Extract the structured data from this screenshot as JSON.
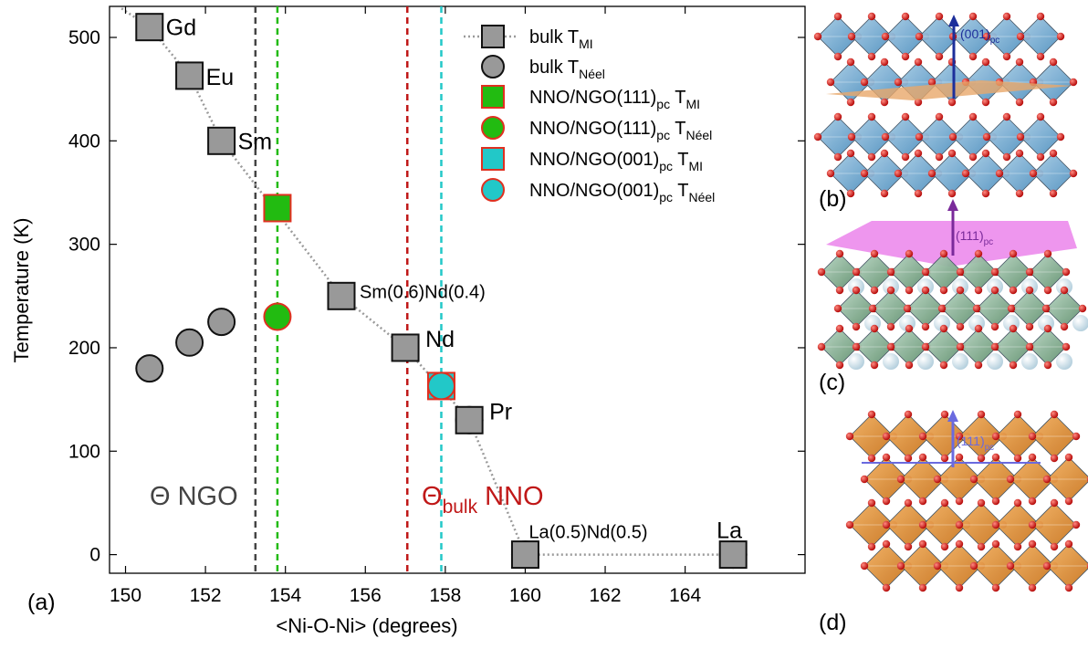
{
  "chart_data": {
    "type": "scatter",
    "panel_labels": {
      "a": "(a)",
      "b": "(b)",
      "c": "(c)",
      "d": "(d)"
    },
    "xlabel": "<Ni-O-Ni> (degrees)",
    "ylabel": "Temperature (K)",
    "xlim": [
      149.6,
      167.0
    ],
    "ylim": [
      -18,
      530
    ],
    "x_ticks": [
      150,
      152,
      154,
      156,
      158,
      160,
      162,
      164
    ],
    "x_tick_labels": [
      "150",
      "152",
      "154",
      "156",
      "158",
      "160",
      "162",
      "164"
    ],
    "y_ticks": [
      0,
      100,
      200,
      300,
      400,
      500
    ],
    "y_tick_labels": [
      "0",
      "100",
      "200",
      "300",
      "400",
      "500"
    ],
    "legend_position": "top-right",
    "colors": {
      "bulk_fill": "#999999",
      "green": "#22bb11",
      "cyan": "#22c8c8",
      "red_edge": "#e03020",
      "dashed_ngo": "#444444",
      "dashed_nno": "#c01818"
    },
    "series": [
      {
        "name": "bulk T",
        "name_sub": "MI",
        "marker": "square",
        "fill": "#999999",
        "edge": "#111111",
        "line": "dotted",
        "x": [
          150.6,
          151.6,
          152.4,
          155.4,
          157.0,
          158.6,
          160.0,
          165.2
        ],
        "y": [
          510,
          463,
          400,
          250,
          200,
          130,
          0,
          0
        ],
        "labels": [
          "Gd",
          "Eu",
          "Sm",
          "Sm(0.6)Nd(0.4)",
          "Nd",
          "Pr",
          "La(0.5)Nd(0.5)",
          "La"
        ]
      },
      {
        "name": "bulk T",
        "name_sub": "Néel",
        "marker": "circle",
        "fill": "#999999",
        "edge": "#111111",
        "x": [
          150.6,
          151.6,
          152.4,
          158.6,
          160.0,
          165.2
        ],
        "y": [
          180,
          205,
          225,
          130,
          0,
          0
        ]
      },
      {
        "name": "NNO/NGO(111)",
        "name_sub_pc": "pc",
        "name_tail": "T",
        "name_sub": "MI",
        "marker": "square",
        "fill": "#22bb11",
        "edge": "#e03020",
        "x": [
          153.8
        ],
        "y": [
          335
        ]
      },
      {
        "name": "NNO/NGO(111)",
        "name_sub_pc": "pc",
        "name_tail": "T",
        "name_sub": "Néel",
        "marker": "circle",
        "fill": "#22bb11",
        "edge": "#e03020",
        "x": [
          153.8
        ],
        "y": [
          230
        ]
      },
      {
        "name": "NNO/NGO(001)",
        "name_sub_pc": "pc",
        "name_tail": "T",
        "name_sub": "MI",
        "marker": "square",
        "fill": "#22c8c8",
        "edge": "#e03020",
        "x": [
          157.9
        ],
        "y": [
          163
        ]
      },
      {
        "name": "NNO/NGO(001)",
        "name_sub_pc": "pc",
        "name_tail": "T",
        "name_sub": "Néel",
        "marker": "circle",
        "fill": "#22c8c8",
        "edge": "#e03020",
        "x": [
          157.9
        ],
        "y": [
          163
        ]
      }
    ],
    "vertical_lines": [
      {
        "x": 153.25,
        "color": "#444444"
      },
      {
        "x": 153.8,
        "color": "#22bb11"
      },
      {
        "x": 157.05,
        "color": "#c01818"
      },
      {
        "x": 157.9,
        "color": "#22c8c8"
      }
    ],
    "annotations": {
      "theta_ngo": "Θ NGO",
      "theta_bulk_symbol": "Θ",
      "theta_bulk_sub": "bulk",
      "theta_bulk_tail": " NNO"
    },
    "structure_panels": {
      "b_arrow_label": "(001)",
      "b_arrow_sub": "pc",
      "c_arrow_label": "(111)",
      "c_arrow_sub": "pc",
      "d_arrow_label": "(111)",
      "d_arrow_sub": "pc"
    }
  }
}
